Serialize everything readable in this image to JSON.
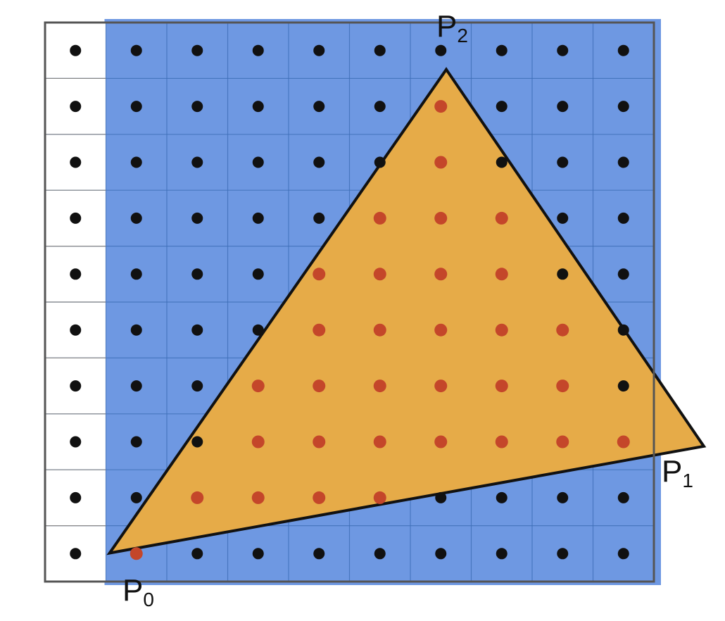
{
  "diagram": {
    "grid": {
      "columns": 10,
      "rows": 10
    },
    "background_cols": [
      0
    ],
    "colors": {
      "page": "#ffffff",
      "blue": "#6e98e2",
      "white_cell": "#ffffff",
      "grid_line": "#3f6fb8",
      "border": "#555555",
      "triangle_fill": "#e6ab48",
      "triangle_stroke": "#111111",
      "dot": "#111111",
      "covered_dot": "#c4462a"
    },
    "vertices": [
      {
        "name": "P",
        "sub": "0",
        "x": 1.06,
        "y": 9.49
      },
      {
        "name": "P",
        "sub": "1",
        "x": 10.82,
        "y": 7.58
      },
      {
        "name": "P",
        "sub": "2",
        "x": 6.59,
        "y": 0.84
      }
    ],
    "covered_samples": [
      [
        6,
        1
      ],
      [
        6,
        2
      ],
      [
        5,
        3
      ],
      [
        6,
        3
      ],
      [
        7,
        3
      ],
      [
        4,
        4
      ],
      [
        5,
        4
      ],
      [
        6,
        4
      ],
      [
        7,
        4
      ],
      [
        4,
        5
      ],
      [
        5,
        5
      ],
      [
        6,
        5
      ],
      [
        7,
        5
      ],
      [
        8,
        5
      ],
      [
        3,
        6
      ],
      [
        4,
        6
      ],
      [
        5,
        6
      ],
      [
        6,
        6
      ],
      [
        7,
        6
      ],
      [
        8,
        6
      ],
      [
        3,
        7
      ],
      [
        4,
        7
      ],
      [
        5,
        7
      ],
      [
        6,
        7
      ],
      [
        7,
        7
      ],
      [
        8,
        7
      ],
      [
        9,
        7
      ],
      [
        2,
        8
      ],
      [
        3,
        8
      ],
      [
        4,
        8
      ],
      [
        5,
        8
      ],
      [
        1,
        9
      ]
    ]
  }
}
